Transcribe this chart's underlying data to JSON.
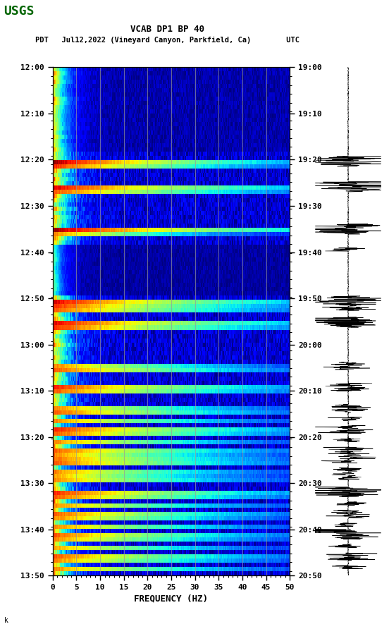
{
  "title_line1": "VCAB DP1 BP 40",
  "title_line2": "PDT   Jul12,2022 (Vineyard Canyon, Parkfield, Ca)        UTC",
  "xlabel": "FREQUENCY (HZ)",
  "freq_min": 0,
  "freq_max": 50,
  "left_time_labels": [
    "12:00",
    "12:10",
    "12:20",
    "12:30",
    "12:40",
    "12:50",
    "13:00",
    "13:10",
    "13:20",
    "13:30",
    "13:40",
    "13:50"
  ],
  "right_time_labels": [
    "19:00",
    "19:10",
    "19:20",
    "19:30",
    "19:40",
    "19:50",
    "20:00",
    "20:10",
    "20:20",
    "20:30",
    "20:40",
    "20:50"
  ],
  "freq_ticks": [
    0,
    5,
    10,
    15,
    20,
    25,
    30,
    35,
    40,
    45,
    50
  ],
  "background_color": "#ffffff",
  "spectrogram_colormap": "jet",
  "grid_color": "#999999",
  "n_time": 120,
  "n_freq": 300,
  "seed": 42
}
